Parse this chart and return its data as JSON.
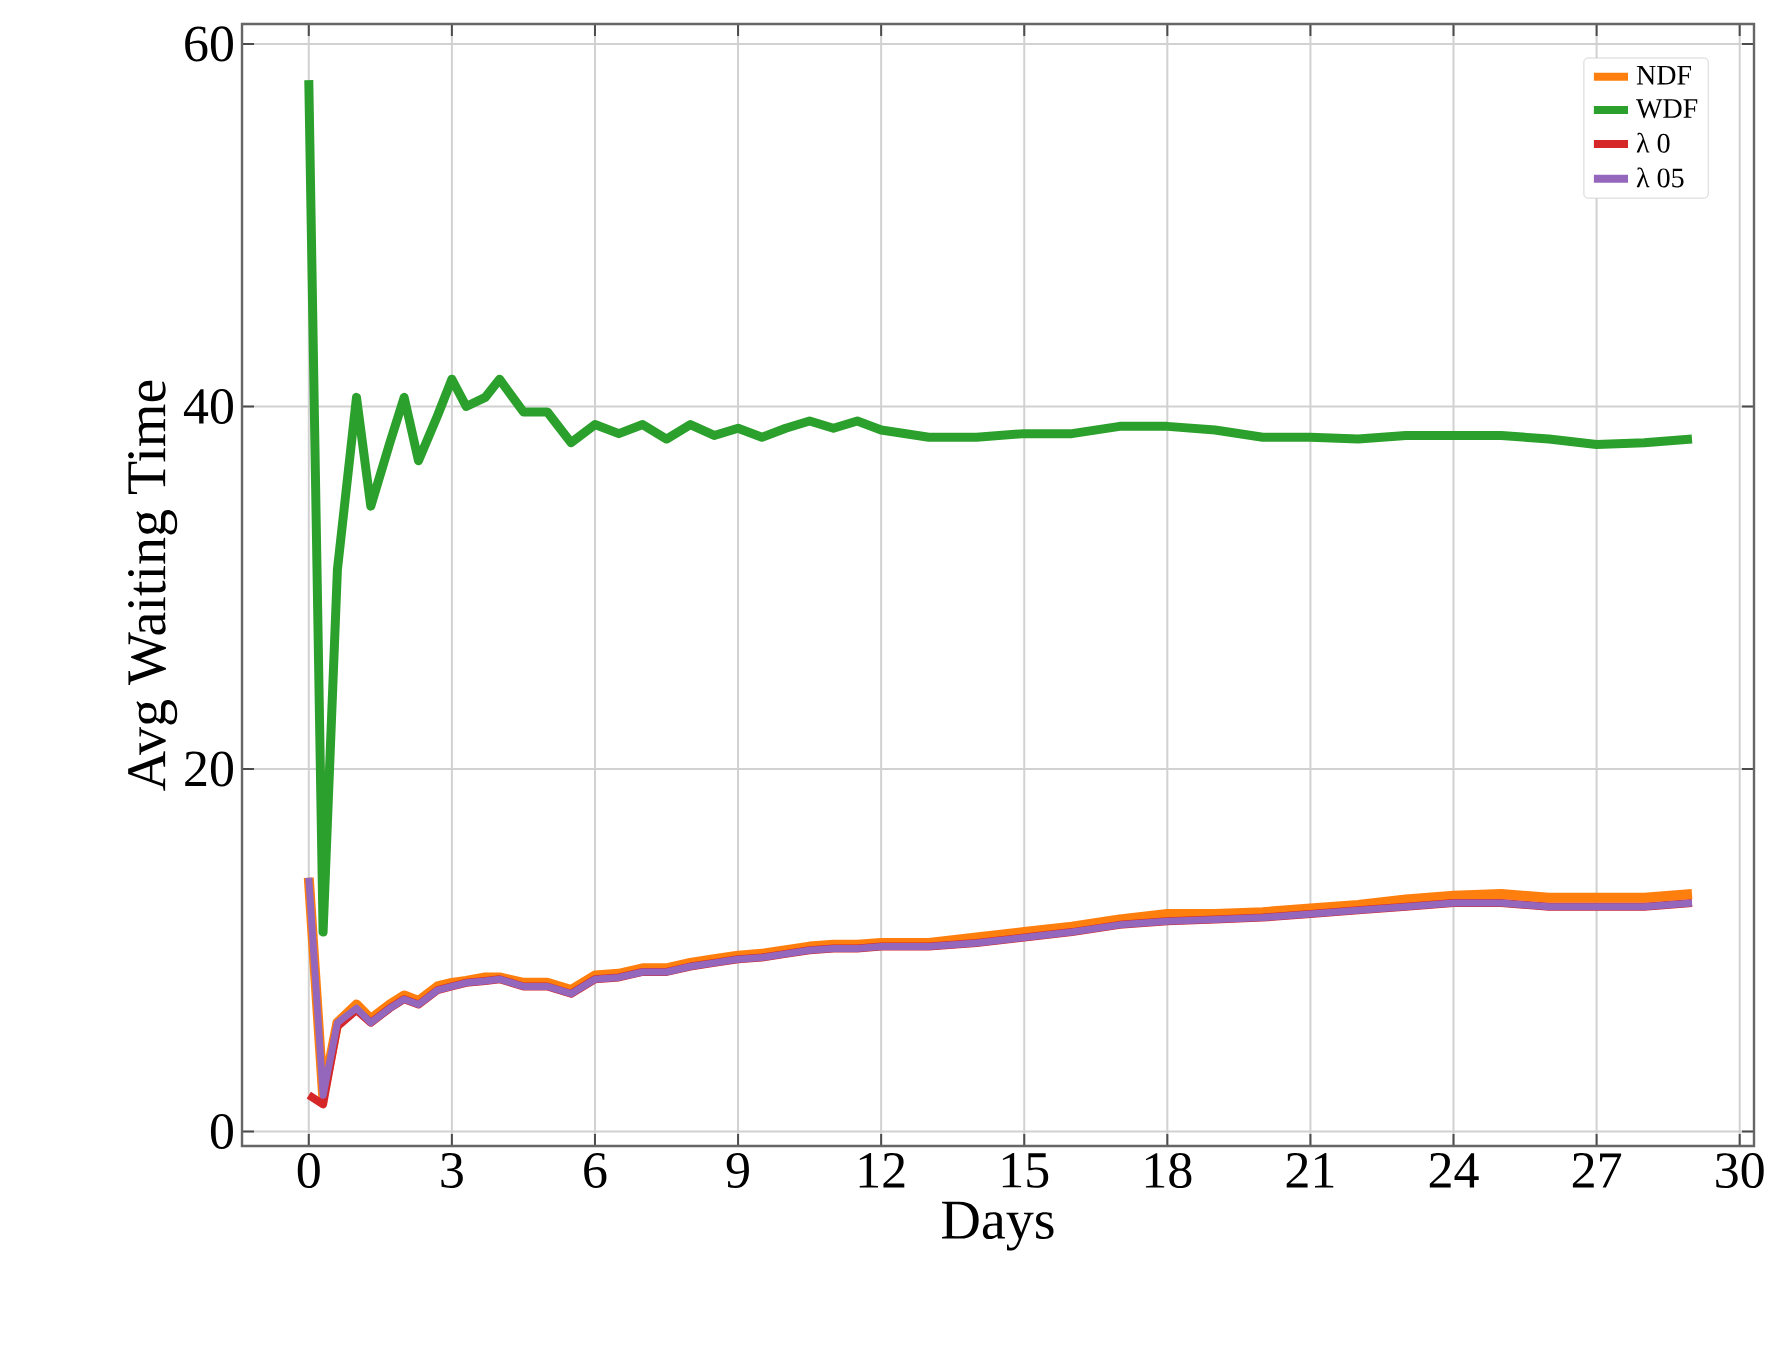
{
  "chart_data": {
    "type": "line",
    "xlabel": "Days",
    "ylabel": "Avg Waiting Time",
    "x": [
      0,
      0.3,
      0.6,
      1,
      1.3,
      1.7,
      2,
      2.3,
      2.7,
      3,
      3.3,
      3.7,
      4,
      4.5,
      5,
      5.5,
      6,
      6.5,
      7,
      7.5,
      8,
      8.5,
      9,
      9.5,
      10,
      10.5,
      11,
      11.5,
      12,
      13,
      14,
      15,
      16,
      17,
      18,
      19,
      20,
      21,
      22,
      23,
      24,
      25,
      26,
      27,
      28,
      29
    ],
    "series": [
      {
        "name": "NDF",
        "color": "#ff7f0e",
        "values": [
          14,
          2,
          6,
          7,
          6.2,
          7,
          7.5,
          7.2,
          8,
          8.2,
          8.3,
          8.5,
          8.5,
          8.2,
          8.2,
          7.8,
          8.6,
          8.7,
          9,
          9,
          9.3,
          9.5,
          9.7,
          9.8,
          10,
          10.2,
          10.3,
          10.3,
          10.4,
          10.4,
          10.7,
          11,
          11.3,
          11.7,
          12,
          12,
          12.1,
          12.3,
          12.5,
          12.8,
          13,
          13.1,
          12.9,
          12.9,
          12.9,
          13.1
        ]
      },
      {
        "name": "WDF",
        "color": "#2ca02c",
        "values": [
          58,
          11,
          31,
          40.5,
          34.5,
          38,
          40.5,
          37,
          39.5,
          41.5,
          40,
          40.5,
          41.5,
          39.7,
          39.7,
          38,
          39,
          38.5,
          39,
          38.2,
          39,
          38.4,
          38.8,
          38.3,
          38.8,
          39.2,
          38.8,
          39.2,
          38.7,
          38.3,
          38.3,
          38.5,
          38.5,
          38.9,
          38.9,
          38.7,
          38.3,
          38.3,
          38.2,
          38.4,
          38.4,
          38.4,
          38.2,
          37.9,
          38,
          38.2
        ]
      },
      {
        "name": "λ 0",
        "color": "#d62728",
        "values": [
          2,
          1.5,
          5.8,
          6.7,
          6,
          6.8,
          7.3,
          7,
          7.8,
          8,
          8.2,
          8.3,
          8.4,
          8,
          8,
          7.6,
          8.4,
          8.5,
          8.8,
          8.8,
          9.1,
          9.3,
          9.5,
          9.6,
          9.8,
          10,
          10.1,
          10.1,
          10.2,
          10.2,
          10.4,
          10.7,
          11,
          11.4,
          11.6,
          11.7,
          11.8,
          12,
          12.2,
          12.4,
          12.6,
          12.6,
          12.4,
          12.4,
          12.4,
          12.6
        ]
      },
      {
        "name": "λ 05",
        "color": "#9467bd",
        "values": [
          14,
          2,
          6,
          6.8,
          6,
          6.8,
          7.3,
          7,
          7.8,
          8,
          8.2,
          8.3,
          8.4,
          8,
          8,
          7.6,
          8.4,
          8.5,
          8.8,
          8.8,
          9.1,
          9.3,
          9.5,
          9.6,
          9.8,
          10,
          10.1,
          10.1,
          10.2,
          10.2,
          10.4,
          10.7,
          11,
          11.4,
          11.6,
          11.7,
          11.8,
          12,
          12.2,
          12.4,
          12.6,
          12.6,
          12.4,
          12.4,
          12.4,
          12.6
        ]
      }
    ],
    "xlim": [
      -1.4,
      30.3
    ],
    "ylim": [
      -0.8,
      61.1
    ],
    "xticks": [
      0,
      3,
      6,
      9,
      12,
      15,
      18,
      21,
      24,
      27,
      30
    ],
    "yticks": [
      0,
      20,
      40,
      60
    ],
    "grid": true,
    "legend": "top right"
  }
}
